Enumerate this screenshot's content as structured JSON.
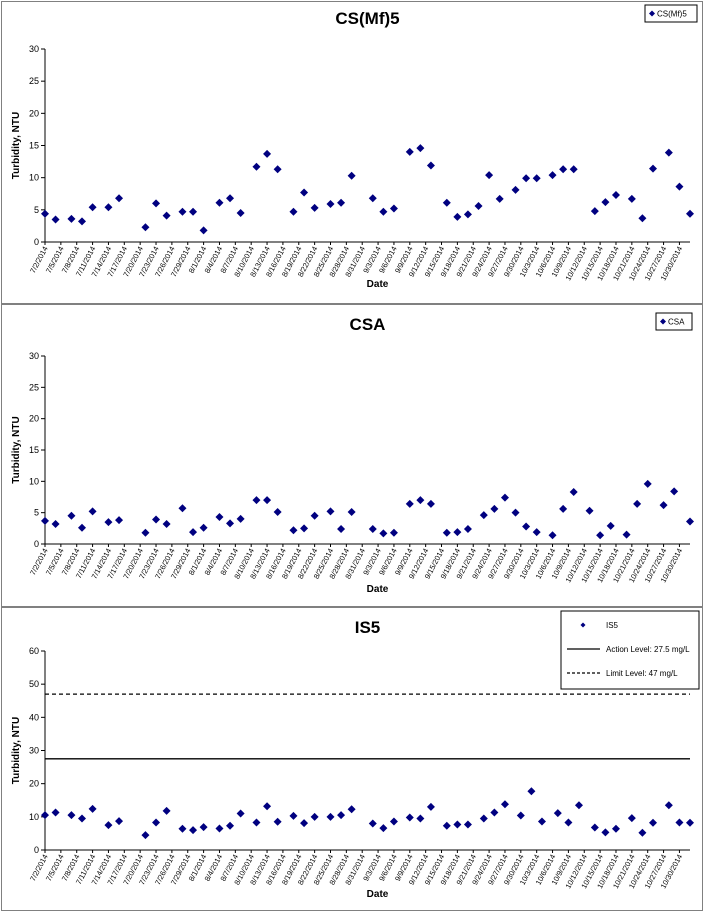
{
  "chart_data": [
    {
      "type": "scatter",
      "title": "CS(Mf)5",
      "xlabel": "Date",
      "ylabel": "Turbidity, NTU",
      "ylim": [
        0,
        30
      ],
      "yticks": [
        0,
        5,
        10,
        15,
        20,
        25,
        30
      ],
      "grid": false,
      "legend_position": "top-right",
      "series": [
        {
          "name": "CS(Mf)5",
          "color": "#000080",
          "marker": "diamond",
          "x": [
            "7/2/2014",
            "7/4/2014",
            "7/7/2014",
            "7/9/2014",
            "7/11/2014",
            "7/14/2014",
            "7/16/2014",
            "7/21/2014",
            "7/23/2014",
            "7/25/2014",
            "7/28/2014",
            "7/30/2014",
            "8/1/2014",
            "8/4/2014",
            "8/6/2014",
            "8/8/2014",
            "8/11/2014",
            "8/13/2014",
            "8/15/2014",
            "8/18/2014",
            "8/20/2014",
            "8/22/2014",
            "8/25/2014",
            "8/27/2014",
            "8/29/2014",
            "9/2/2014",
            "9/4/2014",
            "9/6/2014",
            "9/9/2014",
            "9/11/2014",
            "9/13/2014",
            "9/16/2014",
            "9/18/2014",
            "9/20/2014",
            "9/22/2014",
            "9/24/2014",
            "9/26/2014",
            "9/29/2014",
            "10/1/2014",
            "10/3/2014",
            "10/6/2014",
            "10/8/2014",
            "10/10/2014",
            "10/14/2014",
            "10/16/2014",
            "10/18/2014",
            "10/21/2014",
            "10/23/2014",
            "10/25/2014",
            "10/28/2014",
            "10/30/2014",
            "11/1/2014"
          ],
          "y": [
            4.4,
            3.5,
            3.6,
            3.2,
            5.4,
            5.4,
            6.8,
            2.3,
            6.0,
            4.1,
            4.7,
            4.7,
            1.8,
            6.1,
            6.8,
            4.5,
            11.7,
            13.7,
            11.3,
            4.7,
            7.7,
            5.3,
            5.9,
            6.1,
            10.3,
            6.8,
            4.7,
            5.2,
            14.0,
            14.6,
            11.9,
            6.1,
            3.9,
            4.3,
            5.6,
            10.4,
            6.7,
            8.1,
            9.9,
            9.9,
            10.4,
            11.3,
            11.3,
            4.8,
            6.2,
            7.3,
            6.7,
            3.7,
            11.4,
            13.9,
            8.6,
            4.4
          ]
        }
      ],
      "x_tick_labels": [
        "7/2/2014",
        "7/5/2014",
        "7/8/2014",
        "7/11/2014",
        "7/14/2014",
        "7/17/2014",
        "7/20/2014",
        "7/23/2014",
        "7/26/2014",
        "7/29/2014",
        "8/1/2014",
        "8/4/2014",
        "8/7/2014",
        "8/10/2014",
        "8/13/2014",
        "8/16/2014",
        "8/19/2014",
        "8/22/2014",
        "8/25/2014",
        "8/28/2014",
        "8/31/2014",
        "9/3/2014",
        "9/6/2014",
        "9/9/2014",
        "9/12/2014",
        "9/15/2014",
        "9/18/2014",
        "9/21/2014",
        "9/24/2014",
        "9/27/2014",
        "9/30/2014",
        "10/3/2014",
        "10/6/2014",
        "10/9/2014",
        "10/12/2014",
        "10/15/2014",
        "10/18/2014",
        "10/21/2014",
        "10/24/2014",
        "10/27/2014",
        "10/30/2014"
      ]
    },
    {
      "type": "scatter",
      "title": "CSA",
      "xlabel": "Date",
      "ylabel": "Turbidity, NTU",
      "ylim": [
        0,
        30
      ],
      "yticks": [
        0,
        5,
        10,
        15,
        20,
        25,
        30
      ],
      "grid": false,
      "legend_position": "top-right",
      "series": [
        {
          "name": "CSA",
          "color": "#000080",
          "marker": "diamond",
          "x": [
            "7/2/2014",
            "7/4/2014",
            "7/7/2014",
            "7/9/2014",
            "7/11/2014",
            "7/14/2014",
            "7/16/2014",
            "7/21/2014",
            "7/23/2014",
            "7/25/2014",
            "7/28/2014",
            "7/30/2014",
            "8/1/2014",
            "8/4/2014",
            "8/6/2014",
            "8/8/2014",
            "8/11/2014",
            "8/13/2014",
            "8/15/2014",
            "8/18/2014",
            "8/20/2014",
            "8/22/2014",
            "8/25/2014",
            "8/27/2014",
            "8/29/2014",
            "9/2/2014",
            "9/4/2014",
            "9/6/2014",
            "9/9/2014",
            "9/11/2014",
            "9/13/2014",
            "9/16/2014",
            "9/18/2014",
            "9/20/2014",
            "9/23/2014",
            "9/25/2014",
            "9/27/2014",
            "9/29/2014",
            "10/1/2014",
            "10/3/2014",
            "10/6/2014",
            "10/8/2014",
            "10/10/2014",
            "10/13/2014",
            "10/15/2014",
            "10/17/2014",
            "10/20/2014",
            "10/22/2014",
            "10/24/2014",
            "10/27/2014",
            "10/29/2014",
            "11/1/2014"
          ],
          "y": [
            3.7,
            3.2,
            4.5,
            2.6,
            5.2,
            3.5,
            3.8,
            1.8,
            3.9,
            3.2,
            5.7,
            1.9,
            2.6,
            4.3,
            3.3,
            4.0,
            7.0,
            7.0,
            5.1,
            2.2,
            2.5,
            4.5,
            5.2,
            2.4,
            5.1,
            2.4,
            1.7,
            1.8,
            6.4,
            7.0,
            6.4,
            1.8,
            1.9,
            2.4,
            4.6,
            5.6,
            7.4,
            5.0,
            2.8,
            1.9,
            1.4,
            5.6,
            8.3,
            5.3,
            1.4,
            2.9,
            1.5,
            6.4,
            9.6,
            6.2,
            8.4,
            3.6
          ]
        }
      ],
      "x_tick_labels": [
        "7/2/2014",
        "7/5/2014",
        "7/8/2014",
        "7/11/2014",
        "7/14/2014",
        "7/17/2014",
        "7/20/2014",
        "7/23/2014",
        "7/26/2014",
        "7/29/2014",
        "8/1/2014",
        "8/4/2014",
        "8/7/2014",
        "8/10/2014",
        "8/13/2014",
        "8/16/2014",
        "8/19/2014",
        "8/22/2014",
        "8/25/2014",
        "8/28/2014",
        "8/31/2014",
        "9/3/2014",
        "9/6/2014",
        "9/9/2014",
        "9/12/2014",
        "9/15/2014",
        "9/18/2014",
        "9/21/2014",
        "9/24/2014",
        "9/27/2014",
        "9/30/2014",
        "10/3/2014",
        "10/6/2014",
        "10/9/2014",
        "10/12/2014",
        "10/15/2014",
        "10/18/2014",
        "10/21/2014",
        "10/24/2014",
        "10/27/2014",
        "10/30/2014"
      ]
    },
    {
      "type": "scatter",
      "title": "IS5",
      "xlabel": "Date",
      "ylabel": "Turbidity, NTU",
      "ylim": [
        0,
        60
      ],
      "yticks": [
        0,
        10,
        20,
        30,
        40,
        50,
        60
      ],
      "grid": false,
      "legend_position": "top-right",
      "series": [
        {
          "name": "IS5",
          "color": "#000080",
          "marker": "diamond",
          "x": [
            "7/2/2014",
            "7/4/2014",
            "7/7/2014",
            "7/9/2014",
            "7/11/2014",
            "7/14/2014",
            "7/16/2014",
            "7/21/2014",
            "7/23/2014",
            "7/25/2014",
            "7/28/2014",
            "7/30/2014",
            "8/1/2014",
            "8/4/2014",
            "8/6/2014",
            "8/8/2014",
            "8/11/2014",
            "8/13/2014",
            "8/15/2014",
            "8/18/2014",
            "8/20/2014",
            "8/22/2014",
            "8/25/2014",
            "8/27/2014",
            "8/29/2014",
            "9/2/2014",
            "9/4/2014",
            "9/6/2014",
            "9/9/2014",
            "9/11/2014",
            "9/13/2014",
            "9/16/2014",
            "9/18/2014",
            "9/20/2014",
            "9/23/2014",
            "9/25/2014",
            "9/27/2014",
            "9/30/2014",
            "10/2/2014",
            "10/4/2014",
            "10/7/2014",
            "10/9/2014",
            "10/11/2014",
            "10/14/2014",
            "10/16/2014",
            "10/18/2014",
            "10/21/2014",
            "10/23/2014",
            "10/25/2014",
            "10/28/2014",
            "10/30/2014",
            "11/1/2014"
          ],
          "y": [
            10.5,
            11.3,
            10.5,
            9.5,
            12.4,
            7.5,
            8.7,
            4.5,
            8.3,
            11.8,
            6.4,
            6.0,
            6.9,
            6.5,
            7.3,
            11.0,
            8.3,
            13.2,
            8.5,
            10.3,
            8.1,
            10.0,
            10.0,
            10.5,
            12.3,
            8.0,
            6.6,
            8.6,
            9.8,
            9.5,
            13.0,
            7.3,
            7.7,
            7.7,
            9.5,
            11.3,
            13.8,
            10.4,
            17.7,
            8.6,
            11.1,
            8.3,
            13.5,
            6.8,
            5.3,
            6.4,
            9.6,
            5.2,
            8.2,
            13.5,
            8.3,
            8.2
          ]
        },
        {
          "name": "Action Level: 27.5 mg/L",
          "type": "hline",
          "y": 27.5,
          "style": "solid",
          "color": "#000000"
        },
        {
          "name": "Limit Level: 47 mg/L",
          "type": "hline",
          "y": 47,
          "style": "dashed",
          "color": "#000000"
        }
      ],
      "x_tick_labels": [
        "7/2/2014",
        "7/5/2014",
        "7/8/2014",
        "7/11/2014",
        "7/14/2014",
        "7/17/2014",
        "7/20/2014",
        "7/23/2014",
        "7/26/2014",
        "7/29/2014",
        "8/1/2014",
        "8/4/2014",
        "8/7/2014",
        "8/10/2014",
        "8/13/2014",
        "8/16/2014",
        "8/19/2014",
        "8/22/2014",
        "8/25/2014",
        "8/28/2014",
        "8/31/2014",
        "9/3/2014",
        "9/6/2014",
        "9/9/2014",
        "9/12/2014",
        "9/15/2014",
        "9/18/2014",
        "9/21/2014",
        "9/24/2014",
        "9/27/2014",
        "9/30/2014",
        "10/3/2014",
        "10/6/2014",
        "10/9/2014",
        "10/12/2014",
        "10/15/2014",
        "10/18/2014",
        "10/21/2014",
        "10/24/2014",
        "10/27/2014",
        "10/30/2014"
      ]
    }
  ]
}
